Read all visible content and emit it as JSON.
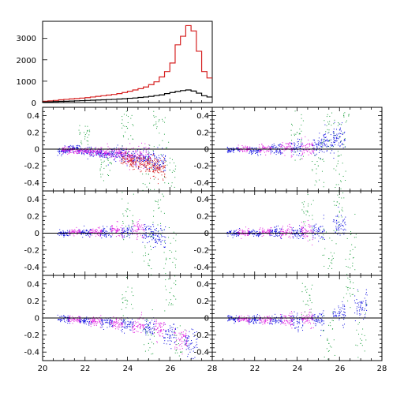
{
  "chart_data": [
    {
      "type": "histogram",
      "xlim": [
        20,
        28
      ],
      "ylim": [
        0,
        3800
      ],
      "y_ticks": [
        0,
        1000,
        2000,
        3000
      ],
      "x_tick_labels_shown": false,
      "bin_width": 0.25,
      "series": [
        {
          "color": "#d62020",
          "x_bins": [
            20.0,
            20.25,
            20.5,
            20.75,
            21.0,
            21.25,
            21.5,
            21.75,
            22.0,
            22.25,
            22.5,
            22.75,
            23.0,
            23.25,
            23.5,
            23.75,
            24.0,
            24.25,
            24.5,
            24.75,
            25.0,
            25.25,
            25.5,
            25.75,
            26.0,
            26.25,
            26.5,
            26.75,
            27.0,
            27.25,
            27.5,
            27.75
          ],
          "counts": [
            60,
            80,
            100,
            130,
            150,
            170,
            190,
            210,
            230,
            260,
            290,
            320,
            350,
            380,
            420,
            470,
            530,
            590,
            650,
            730,
            840,
            970,
            1200,
            1450,
            1850,
            2700,
            3100,
            3600,
            3350,
            2400,
            1450,
            1150
          ]
        },
        {
          "color": "#000000",
          "x_bins": [
            20.0,
            20.25,
            20.5,
            20.75,
            21.0,
            21.25,
            21.5,
            21.75,
            22.0,
            22.25,
            22.5,
            22.75,
            23.0,
            23.25,
            23.5,
            23.75,
            24.0,
            24.25,
            24.5,
            24.75,
            25.0,
            25.25,
            25.5,
            25.75,
            26.0,
            26.25,
            26.5,
            26.75,
            27.0,
            27.25,
            27.5,
            27.75
          ],
          "counts": [
            30,
            35,
            45,
            55,
            60,
            70,
            80,
            90,
            100,
            110,
            120,
            130,
            140,
            150,
            165,
            180,
            200,
            215,
            240,
            260,
            290,
            330,
            360,
            420,
            470,
            520,
            560,
            590,
            540,
            440,
            320,
            260
          ]
        }
      ]
    },
    {
      "type": "scatter",
      "panel": "row1-left",
      "xlim": [
        20,
        28
      ],
      "ylim": [
        -0.5,
        0.5
      ],
      "y_ticks": [
        -0.4,
        -0.2,
        0,
        0.2,
        0.4
      ],
      "description_of_trend": "points centered near -0.05, spread increases toward faint end, red points dip to -0.2 near 24-25.5",
      "series": [
        {
          "color": "#1010e0",
          "points": [
            [
              21.0,
              -0.02
            ],
            [
              21.5,
              0.01
            ],
            [
              22.0,
              -0.03
            ],
            [
              22.5,
              -0.04
            ],
            [
              23.0,
              -0.05
            ],
            [
              23.5,
              -0.06
            ],
            [
              24.0,
              -0.08
            ],
            [
              24.5,
              -0.1
            ],
            [
              25.0,
              -0.12
            ],
            [
              25.5,
              -0.15
            ]
          ]
        },
        {
          "color": "#e020e0",
          "points": [
            [
              21.2,
              -0.01
            ],
            [
              21.8,
              -0.02
            ],
            [
              22.4,
              -0.03
            ],
            [
              23.0,
              -0.04
            ],
            [
              23.6,
              -0.05
            ],
            [
              24.2,
              -0.07
            ],
            [
              24.8,
              -0.09
            ]
          ]
        },
        {
          "color": "#20a040",
          "points": [
            [
              22.0,
              0.15
            ],
            [
              23.0,
              -0.2
            ],
            [
              24.0,
              0.25
            ],
            [
              25.0,
              -0.3
            ],
            [
              25.5,
              0.35
            ],
            [
              26.0,
              -0.25
            ]
          ]
        },
        {
          "color": "#d62020",
          "points": [
            [
              24.0,
              -0.12
            ],
            [
              24.4,
              -0.16
            ],
            [
              24.8,
              -0.18
            ],
            [
              25.2,
              -0.2
            ],
            [
              25.5,
              -0.22
            ]
          ]
        }
      ]
    },
    {
      "type": "scatter",
      "panel": "row1-right",
      "xlim": [
        20,
        28
      ],
      "ylim": [
        -0.5,
        0.5
      ],
      "y_ticks": [
        -0.4,
        -0.2,
        0,
        0.2,
        0.4
      ],
      "series": [
        {
          "color": "#1010e0",
          "points": [
            [
              21.0,
              -0.01
            ],
            [
              22.0,
              -0.02
            ],
            [
              23.0,
              0.0
            ],
            [
              24.0,
              0.02
            ],
            [
              25.0,
              0.05
            ],
            [
              25.5,
              0.1
            ],
            [
              26.0,
              0.15
            ]
          ]
        },
        {
          "color": "#e020e0",
          "points": [
            [
              21.5,
              0.0
            ],
            [
              22.5,
              0.0
            ],
            [
              23.5,
              0.01
            ],
            [
              24.5,
              0.02
            ]
          ]
        },
        {
          "color": "#20a040",
          "points": [
            [
              24.0,
              0.2
            ],
            [
              25.0,
              -0.2
            ],
            [
              25.5,
              0.3
            ],
            [
              26.0,
              -0.3
            ],
            [
              26.2,
              0.4
            ]
          ]
        }
      ]
    },
    {
      "type": "scatter",
      "panel": "row2-left",
      "xlim": [
        20,
        28
      ],
      "ylim": [
        -0.5,
        0.5
      ],
      "y_ticks": [
        -0.4,
        -0.2,
        0,
        0.2,
        0.4
      ],
      "series": [
        {
          "color": "#1010e0",
          "points": [
            [
              21.0,
              0.0
            ],
            [
              22.0,
              0.01
            ],
            [
              23.0,
              0.0
            ],
            [
              24.0,
              0.01
            ],
            [
              25.0,
              0.0
            ],
            [
              25.5,
              -0.05
            ]
          ]
        },
        {
          "color": "#e020e0",
          "points": [
            [
              21.5,
              0.01
            ],
            [
              22.5,
              0.02
            ],
            [
              23.5,
              0.03
            ],
            [
              24.5,
              0.04
            ]
          ]
        },
        {
          "color": "#20a040",
          "points": [
            [
              24.0,
              0.2
            ],
            [
              25.0,
              -0.25
            ],
            [
              25.5,
              0.3
            ],
            [
              26.0,
              -0.3
            ]
          ]
        }
      ]
    },
    {
      "type": "scatter",
      "panel": "row2-right",
      "xlim": [
        20,
        28
      ],
      "ylim": [
        -0.5,
        0.5
      ],
      "y_ticks": [
        -0.4,
        -0.2,
        0,
        0.2,
        0.4
      ],
      "series": [
        {
          "color": "#1010e0",
          "points": [
            [
              21.0,
              0.0
            ],
            [
              22.0,
              0.0
            ],
            [
              23.0,
              0.01
            ],
            [
              24.0,
              0.01
            ],
            [
              25.0,
              0.02
            ],
            [
              26.0,
              0.1
            ]
          ]
        },
        {
          "color": "#e020e0",
          "points": [
            [
              21.5,
              0.0
            ],
            [
              22.5,
              0.01
            ],
            [
              23.5,
              0.01
            ],
            [
              24.5,
              0.02
            ]
          ]
        },
        {
          "color": "#20a040",
          "points": [
            [
              24.5,
              0.25
            ],
            [
              25.5,
              -0.3
            ],
            [
              26.0,
              0.35
            ],
            [
              26.5,
              -0.25
            ]
          ]
        }
      ]
    },
    {
      "type": "scatter",
      "panel": "row3-left",
      "xlim": [
        20,
        28
      ],
      "ylim": [
        -0.5,
        0.5
      ],
      "y_ticks": [
        -0.4,
        -0.2,
        0,
        0.2,
        0.4
      ],
      "series": [
        {
          "color": "#1010e0",
          "points": [
            [
              21.0,
              -0.01
            ],
            [
              22.0,
              -0.03
            ],
            [
              23.0,
              -0.05
            ],
            [
              24.0,
              -0.08
            ],
            [
              25.0,
              -0.12
            ],
            [
              26.0,
              -0.2
            ],
            [
              27.0,
              -0.3
            ]
          ]
        },
        {
          "color": "#e020e0",
          "points": [
            [
              21.5,
              -0.02
            ],
            [
              22.5,
              -0.04
            ],
            [
              23.5,
              -0.06
            ],
            [
              24.5,
              -0.09
            ],
            [
              25.5,
              -0.15
            ],
            [
              26.5,
              -0.25
            ]
          ]
        },
        {
          "color": "#20a040",
          "points": [
            [
              24.0,
              0.2
            ],
            [
              25.0,
              -0.3
            ],
            [
              26.0,
              0.3
            ],
            [
              26.5,
              -0.4
            ]
          ]
        }
      ]
    },
    {
      "type": "scatter",
      "panel": "row3-right",
      "xlim": [
        20,
        28
      ],
      "ylim": [
        -0.5,
        0.5
      ],
      "y_ticks": [
        -0.4,
        -0.2,
        0,
        0.2,
        0.4
      ],
      "x_ticks": [
        20,
        22,
        24,
        26,
        28
      ],
      "series": [
        {
          "color": "#1010e0",
          "points": [
            [
              21.0,
              -0.01
            ],
            [
              22.0,
              -0.02
            ],
            [
              23.0,
              -0.03
            ],
            [
              24.0,
              -0.04
            ],
            [
              25.0,
              -0.02
            ],
            [
              26.0,
              0.05
            ],
            [
              27.0,
              0.15
            ]
          ]
        },
        {
          "color": "#e020e0",
          "points": [
            [
              21.5,
              -0.01
            ],
            [
              22.5,
              -0.02
            ],
            [
              23.5,
              -0.03
            ],
            [
              24.5,
              -0.02
            ]
          ]
        },
        {
          "color": "#20a040",
          "points": [
            [
              24.5,
              0.2
            ],
            [
              25.5,
              -0.3
            ],
            [
              26.5,
              0.35
            ],
            [
              27.0,
              -0.3
            ]
          ]
        }
      ]
    }
  ],
  "x_tick_labels": [
    "20",
    "22",
    "24",
    "26",
    "28"
  ],
  "hist_tick_labels": [
    "0",
    "1000",
    "2000",
    "3000"
  ],
  "resid_tick_labels": [
    "0.4",
    "0.2",
    "0",
    "-0.2",
    "-0.4"
  ],
  "colors": {
    "red": "#d62020",
    "black": "#000000",
    "blue": "#1010e0",
    "magenta": "#e020e0",
    "green": "#20a040"
  }
}
